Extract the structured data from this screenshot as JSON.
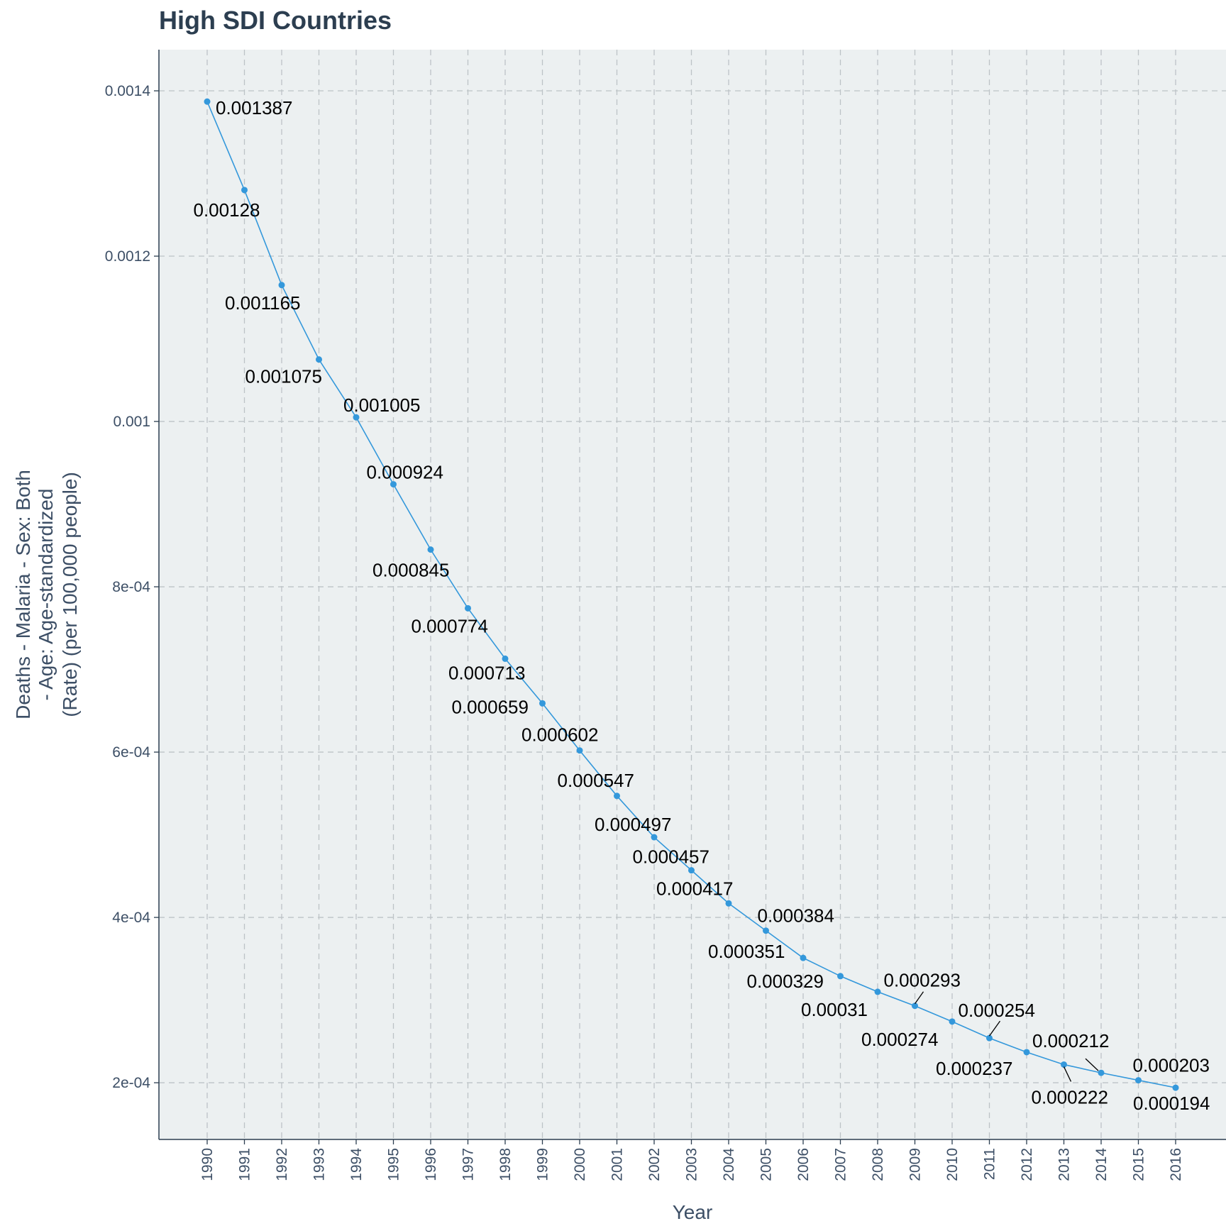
{
  "chart_data": {
    "type": "line",
    "title": "High SDI Countries",
    "xlabel": "Year",
    "ylabel_lines": [
      "Deaths - Malaria - Sex: Both",
      "- Age: Age-standardized",
      "(Rate) (per 100,000 people)"
    ],
    "x": [
      "1990",
      "1991",
      "1992",
      "1993",
      "1994",
      "1995",
      "1996",
      "1997",
      "1998",
      "1999",
      "2000",
      "2001",
      "2002",
      "2003",
      "2004",
      "2005",
      "2006",
      "2007",
      "2008",
      "2009",
      "2010",
      "2011",
      "2012",
      "2013",
      "2014",
      "2015",
      "2016"
    ],
    "series": [
      {
        "values": [
          0.001387,
          0.00128,
          0.001165,
          0.001075,
          0.001005,
          0.000924,
          0.000845,
          0.000774,
          0.000713,
          0.000659,
          0.000602,
          0.000547,
          0.000497,
          0.000457,
          0.000417,
          0.000384,
          0.000351,
          0.000329,
          0.00031,
          0.000293,
          0.000274,
          0.000254,
          0.000237,
          0.000222,
          0.000212,
          0.000203,
          0.000194
        ],
        "labels": [
          "0.001387",
          "0.00128",
          "0.001165",
          "0.001075",
          "0.001005",
          "0.000924",
          "0.000845",
          "0.000774",
          "0.000713",
          "0.000659",
          "0.000602",
          "0.000547",
          "0.000497",
          "0.000457",
          "0.000417",
          "0.000384",
          "0.000351",
          "0.000329",
          "0.00031",
          "0.000293",
          "0.000274",
          "0.000254",
          "0.000237",
          "0.000222",
          "0.000212",
          "0.000203",
          "0.000194"
        ],
        "color": "#3498db"
      }
    ],
    "yticks": [
      {
        "value": 0.0002,
        "label": "2e-04"
      },
      {
        "value": 0.0004,
        "label": "4e-04"
      },
      {
        "value": 0.0006,
        "label": "6e-04"
      },
      {
        "value": 0.0008,
        "label": "8e-04"
      },
      {
        "value": 0.001,
        "label": "0.001"
      },
      {
        "value": 0.0012,
        "label": "0.0012"
      },
      {
        "value": 0.0014,
        "label": "0.0014"
      }
    ],
    "ylim": [
      0.0001314,
      0.0014498
    ],
    "grid": true,
    "panel_color": "#ecf0f1",
    "grid_color": "#bdc3c7",
    "text_color": "#2c3e50"
  }
}
